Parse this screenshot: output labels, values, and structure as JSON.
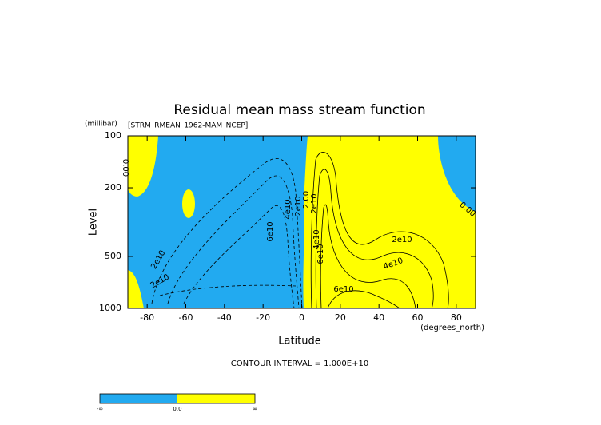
{
  "chart_data": {
    "type": "contour",
    "title": "Residual mean mass stream function",
    "subtitle": "[STRM_RMEAN_1962-MAM_NCEP]",
    "y_units": "(millibar)",
    "x_units": "(degrees_north)",
    "x_label": "Latitude",
    "y_label": "Level",
    "xlim": [
      -90,
      90
    ],
    "xticks": [
      -80,
      -60,
      -40,
      -20,
      0,
      20,
      40,
      60,
      80
    ],
    "ylim": [
      1000,
      100
    ],
    "yticks": [
      100,
      200,
      500,
      1000
    ],
    "y_log": true,
    "contour_labels": [
      "0.00",
      "0.00",
      "2e10",
      "2e10",
      "6e10",
      "4e10",
      "2e10",
      "2.00",
      "2e10",
      "4e10",
      "6e10",
      "2e10",
      "4e10",
      "6e10"
    ],
    "note": "CONTOUR INTERVAL = 1.000E+10",
    "colorbar": {
      "colors": [
        "#22aaf0",
        "#ffff00"
      ],
      "labels": [
        "-∞",
        "0.0",
        "∞"
      ]
    }
  }
}
